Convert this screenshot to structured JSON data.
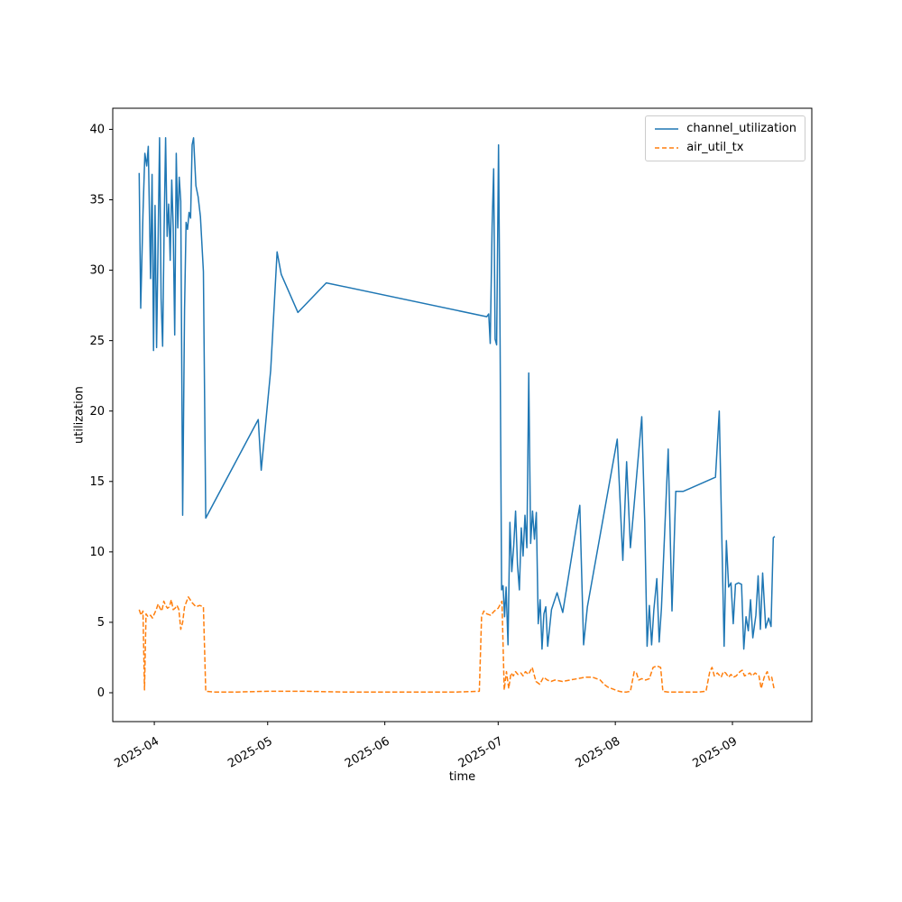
{
  "figure": {
    "background": "#ffffff",
    "axes_edge_color": "#000000",
    "tick_color": "#000000"
  },
  "chart_data": {
    "type": "line",
    "title": "",
    "xlabel": "time",
    "ylabel": "utilization",
    "x_encoding": "day_of_year_2025",
    "xlim_days": [
      79,
      264
    ],
    "ylim": [
      -2.05,
      41.5
    ],
    "grid": false,
    "x_tick_rotation_deg": 30,
    "x_ticks": [
      {
        "day": 90,
        "label": "2025-04"
      },
      {
        "day": 120,
        "label": "2025-05"
      },
      {
        "day": 151,
        "label": "2025-06"
      },
      {
        "day": 181,
        "label": "2025-07"
      },
      {
        "day": 212,
        "label": "2025-08"
      },
      {
        "day": 243,
        "label": "2025-09"
      }
    ],
    "y_ticks": [
      0,
      5,
      10,
      15,
      20,
      25,
      30,
      35,
      40
    ],
    "legend": {
      "position": "upper-right",
      "edge_color": "#cccccc",
      "background": "#ffffff"
    },
    "series": [
      {
        "name": "channel_utilization",
        "color": "#1f77b4",
        "line_style": "solid",
        "line_width": 1.5,
        "points": [
          [
            86.0,
            36.9
          ],
          [
            86.4,
            27.3
          ],
          [
            87.0,
            34.0
          ],
          [
            87.5,
            38.3
          ],
          [
            88.0,
            37.4
          ],
          [
            88.4,
            38.8
          ],
          [
            89.0,
            29.4
          ],
          [
            89.4,
            36.8
          ],
          [
            89.8,
            24.3
          ],
          [
            90.2,
            34.6
          ],
          [
            90.6,
            24.5
          ],
          [
            91.0,
            32.1
          ],
          [
            91.4,
            39.4
          ],
          [
            91.8,
            28.0
          ],
          [
            92.2,
            24.6
          ],
          [
            92.6,
            33.1
          ],
          [
            93.0,
            39.4
          ],
          [
            93.4,
            32.4
          ],
          [
            93.8,
            34.7
          ],
          [
            94.2,
            30.7
          ],
          [
            94.6,
            36.4
          ],
          [
            95.0,
            33.1
          ],
          [
            95.4,
            25.4
          ],
          [
            95.8,
            38.3
          ],
          [
            96.2,
            33.0
          ],
          [
            96.6,
            36.6
          ],
          [
            97.0,
            34.9
          ],
          [
            97.5,
            12.6
          ],
          [
            98.0,
            27.2
          ],
          [
            98.4,
            33.4
          ],
          [
            98.8,
            32.9
          ],
          [
            99.2,
            34.1
          ],
          [
            99.6,
            33.7
          ],
          [
            100.0,
            38.9
          ],
          [
            100.4,
            39.4
          ],
          [
            101.0,
            36.0
          ],
          [
            101.6,
            35.2
          ],
          [
            102.2,
            33.8
          ],
          [
            103.0,
            29.9
          ],
          [
            103.6,
            12.4
          ],
          [
            117.5,
            19.4
          ],
          [
            118.3,
            15.8
          ],
          [
            120.8,
            22.9
          ],
          [
            122.5,
            31.3
          ],
          [
            123.6,
            29.7
          ],
          [
            128.0,
            27.0
          ],
          [
            135.5,
            29.1
          ],
          [
            178.0,
            26.7
          ],
          [
            178.5,
            26.9
          ],
          [
            178.9,
            24.8
          ],
          [
            179.4,
            33.2
          ],
          [
            179.8,
            37.2
          ],
          [
            180.2,
            25.1
          ],
          [
            180.6,
            24.7
          ],
          [
            181.1,
            38.9
          ],
          [
            181.5,
            25.2
          ],
          [
            181.9,
            7.3
          ],
          [
            182.3,
            7.6
          ],
          [
            182.7,
            5.4
          ],
          [
            183.1,
            7.5
          ],
          [
            183.6,
            3.4
          ],
          [
            184.1,
            12.1
          ],
          [
            184.6,
            8.6
          ],
          [
            185.1,
            10.4
          ],
          [
            185.6,
            12.9
          ],
          [
            186.1,
            9.1
          ],
          [
            186.6,
            7.3
          ],
          [
            187.1,
            11.7
          ],
          [
            187.6,
            9.7
          ],
          [
            188.1,
            12.6
          ],
          [
            188.6,
            10.3
          ],
          [
            189.1,
            22.7
          ],
          [
            189.6,
            10.6
          ],
          [
            190.1,
            12.9
          ],
          [
            190.6,
            10.9
          ],
          [
            191.1,
            12.8
          ],
          [
            191.6,
            4.9
          ],
          [
            192.1,
            6.6
          ],
          [
            192.6,
            3.1
          ],
          [
            193.1,
            5.6
          ],
          [
            193.6,
            6.1
          ],
          [
            194.1,
            3.3
          ],
          [
            195.1,
            5.9
          ],
          [
            196.6,
            7.1
          ],
          [
            198.1,
            5.7
          ],
          [
            202.6,
            13.3
          ],
          [
            203.6,
            3.4
          ],
          [
            204.6,
            6.1
          ],
          [
            212.5,
            18.0
          ],
          [
            214.0,
            9.4
          ],
          [
            215.0,
            16.4
          ],
          [
            216.0,
            10.3
          ],
          [
            219.0,
            19.6
          ],
          [
            219.8,
            12.1
          ],
          [
            220.4,
            3.3
          ],
          [
            221.0,
            6.2
          ],
          [
            221.6,
            3.4
          ],
          [
            222.2,
            5.9
          ],
          [
            223.0,
            8.1
          ],
          [
            223.6,
            3.6
          ],
          [
            224.2,
            6.0
          ],
          [
            226.0,
            17.3
          ],
          [
            227.0,
            5.8
          ],
          [
            228.0,
            14.3
          ],
          [
            230.0,
            14.3
          ],
          [
            238.5,
            15.3
          ],
          [
            239.5,
            20.0
          ],
          [
            240.2,
            10.9
          ],
          [
            240.8,
            3.3
          ],
          [
            241.4,
            10.8
          ],
          [
            242.0,
            7.5
          ],
          [
            242.6,
            7.8
          ],
          [
            243.2,
            4.9
          ],
          [
            243.8,
            7.7
          ],
          [
            244.6,
            7.8
          ],
          [
            245.4,
            7.7
          ],
          [
            246.0,
            3.1
          ],
          [
            246.6,
            5.4
          ],
          [
            247.2,
            4.4
          ],
          [
            247.8,
            6.6
          ],
          [
            248.4,
            3.9
          ],
          [
            249.2,
            5.5
          ],
          [
            249.8,
            8.3
          ],
          [
            250.4,
            4.5
          ],
          [
            251.0,
            8.5
          ],
          [
            251.8,
            4.6
          ],
          [
            252.6,
            5.3
          ],
          [
            253.2,
            4.7
          ],
          [
            253.8,
            11.0
          ],
          [
            254.2,
            11.1
          ]
        ]
      },
      {
        "name": "air_util_tx",
        "color": "#ff7f0e",
        "line_style": "dashed",
        "line_width": 1.5,
        "points": [
          [
            86.0,
            5.9
          ],
          [
            86.5,
            5.5
          ],
          [
            87.0,
            5.8
          ],
          [
            87.4,
            0.2
          ],
          [
            87.8,
            5.6
          ],
          [
            88.3,
            5.4
          ],
          [
            89.0,
            5.5
          ],
          [
            89.5,
            5.3
          ],
          [
            90.0,
            5.6
          ],
          [
            90.5,
            5.9
          ],
          [
            91.0,
            6.3
          ],
          [
            91.5,
            6.0
          ],
          [
            92.0,
            5.8
          ],
          [
            92.5,
            6.5
          ],
          [
            93.0,
            6.2
          ],
          [
            93.5,
            6.0
          ],
          [
            94.0,
            6.1
          ],
          [
            94.5,
            6.6
          ],
          [
            95.0,
            5.9
          ],
          [
            95.5,
            6.0
          ],
          [
            96.0,
            6.2
          ],
          [
            96.5,
            5.9
          ],
          [
            97.0,
            4.5
          ],
          [
            97.5,
            5.0
          ],
          [
            98.0,
            6.1
          ],
          [
            99.0,
            6.8
          ],
          [
            100.0,
            6.4
          ],
          [
            101.0,
            6.1
          ],
          [
            102.0,
            6.2
          ],
          [
            103.0,
            6.1
          ],
          [
            103.6,
            0.1
          ],
          [
            106.0,
            0.05
          ],
          [
            112.0,
            0.05
          ],
          [
            120.0,
            0.1
          ],
          [
            130.0,
            0.1
          ],
          [
            140.0,
            0.05
          ],
          [
            150.0,
            0.05
          ],
          [
            160.0,
            0.05
          ],
          [
            170.0,
            0.05
          ],
          [
            176.0,
            0.1
          ],
          [
            176.6,
            5.4
          ],
          [
            177.2,
            5.8
          ],
          [
            178.0,
            5.6
          ],
          [
            179.0,
            5.5
          ],
          [
            180.0,
            5.8
          ],
          [
            181.0,
            6.0
          ],
          [
            182.0,
            6.5
          ],
          [
            182.6,
            0.2
          ],
          [
            183.2,
            1.5
          ],
          [
            183.8,
            0.3
          ],
          [
            184.4,
            1.4
          ],
          [
            185.0,
            1.2
          ],
          [
            185.6,
            1.5
          ],
          [
            186.2,
            1.3
          ],
          [
            187.0,
            1.4
          ],
          [
            187.6,
            1.2
          ],
          [
            188.2,
            1.5
          ],
          [
            189.0,
            1.3
          ],
          [
            190.0,
            1.8
          ],
          [
            191.0,
            0.8
          ],
          [
            192.0,
            0.6
          ],
          [
            193.0,
            1.1
          ],
          [
            194.0,
            0.9
          ],
          [
            195.0,
            0.8
          ],
          [
            196.0,
            0.9
          ],
          [
            198.0,
            0.8
          ],
          [
            200.0,
            0.9
          ],
          [
            202.0,
            1.0
          ],
          [
            204.0,
            1.1
          ],
          [
            206.0,
            1.1
          ],
          [
            208.0,
            0.9
          ],
          [
            209.0,
            0.6
          ],
          [
            210.0,
            0.4
          ],
          [
            211.0,
            0.3
          ],
          [
            212.0,
            0.2
          ],
          [
            213.0,
            0.1
          ],
          [
            214.0,
            0.05
          ],
          [
            215.0,
            0.05
          ],
          [
            216.0,
            0.1
          ],
          [
            217.0,
            1.5
          ],
          [
            217.6,
            1.4
          ],
          [
            218.2,
            0.9
          ],
          [
            219.0,
            1.0
          ],
          [
            220.0,
            0.9
          ],
          [
            221.0,
            1.0
          ],
          [
            222.0,
            1.8
          ],
          [
            223.0,
            1.9
          ],
          [
            224.0,
            1.8
          ],
          [
            224.6,
            0.1
          ],
          [
            226.0,
            0.05
          ],
          [
            228.0,
            0.05
          ],
          [
            230.0,
            0.05
          ],
          [
            232.0,
            0.05
          ],
          [
            234.0,
            0.05
          ],
          [
            236.0,
            0.1
          ],
          [
            237.0,
            1.5
          ],
          [
            237.6,
            1.8
          ],
          [
            238.2,
            1.2
          ],
          [
            239.0,
            1.4
          ],
          [
            240.0,
            1.1
          ],
          [
            240.6,
            1.5
          ],
          [
            241.2,
            1.4
          ],
          [
            242.0,
            1.1
          ],
          [
            242.6,
            1.3
          ],
          [
            243.2,
            1.1
          ],
          [
            244.0,
            1.2
          ],
          [
            245.0,
            1.5
          ],
          [
            245.6,
            1.6
          ],
          [
            246.2,
            1.2
          ],
          [
            247.0,
            1.3
          ],
          [
            247.6,
            1.4
          ],
          [
            248.2,
            1.2
          ],
          [
            249.0,
            1.4
          ],
          [
            250.0,
            1.2
          ],
          [
            250.6,
            0.3
          ],
          [
            251.4,
            1.1
          ],
          [
            252.2,
            1.5
          ],
          [
            252.8,
            0.9
          ],
          [
            253.4,
            1.1
          ],
          [
            254.0,
            0.3
          ]
        ]
      }
    ]
  }
}
